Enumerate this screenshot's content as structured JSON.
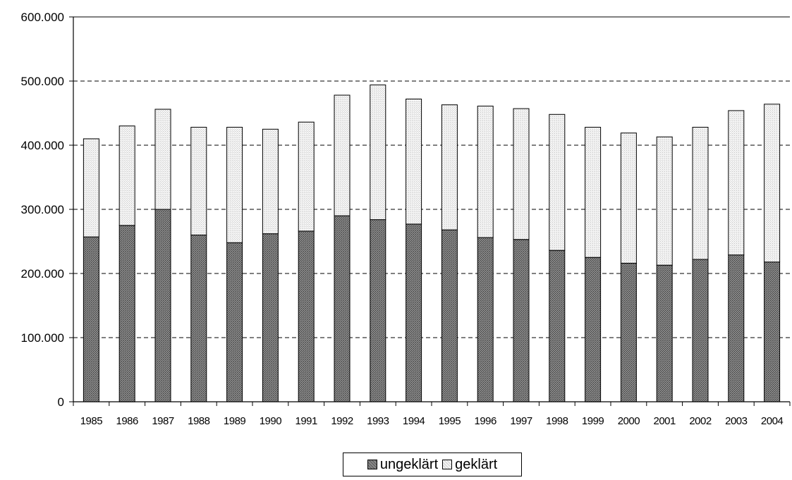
{
  "chart_data": {
    "type": "bar",
    "stacked": true,
    "categories": [
      "1985",
      "1986",
      "1987",
      "1988",
      "1989",
      "1990",
      "1991",
      "1992",
      "1993",
      "1994",
      "1995",
      "1996",
      "1997",
      "1998",
      "1999",
      "2000",
      "2001",
      "2002",
      "2003",
      "2004"
    ],
    "series": [
      {
        "name": "ungeklärt",
        "values": [
          257000,
          275000,
          300000,
          260000,
          248000,
          262000,
          266000,
          290000,
          284000,
          277000,
          268000,
          256000,
          253000,
          236000,
          225000,
          216000,
          213000,
          222000,
          229000,
          218000
        ],
        "color": "#7a7a7a"
      },
      {
        "name": "geklärt",
        "values": [
          153000,
          155000,
          156000,
          168000,
          180000,
          163000,
          170000,
          188000,
          210000,
          195000,
          195000,
          205000,
          204000,
          212000,
          203000,
          203000,
          200000,
          206000,
          225000,
          246000
        ],
        "color": "#eeeeee"
      }
    ],
    "ylim": [
      0,
      600000
    ],
    "yticks": [
      {
        "value": 0,
        "label": "0"
      },
      {
        "value": 100000,
        "label": "100.000"
      },
      {
        "value": 200000,
        "label": "200.000"
      },
      {
        "value": 300000,
        "label": "300.000"
      },
      {
        "value": 400000,
        "label": "400.000"
      },
      {
        "value": 500000,
        "label": "500.000"
      },
      {
        "value": 600000,
        "label": "600.000"
      }
    ],
    "grid": "y-dashed",
    "legend_position": "bottom-center"
  }
}
